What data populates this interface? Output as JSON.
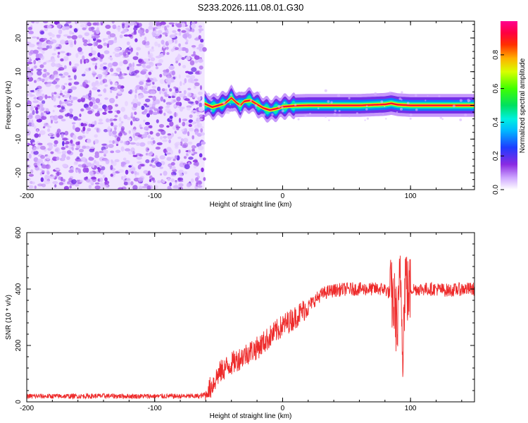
{
  "title": "S233.2026.111.08.01.G30",
  "chart_data": [
    {
      "type": "heatmap",
      "title": "S233.2026.111.08.01.G30",
      "xlabel": "Height of straight line (km)",
      "ylabel": "Frequency (Hz)",
      "xlim": [
        -200,
        150
      ],
      "ylim": [
        -25,
        25
      ],
      "x_ticks": [
        -200,
        -100,
        0,
        100
      ],
      "y_ticks": [
        -20,
        -10,
        0,
        10,
        20
      ],
      "noise_region_x": [
        -200,
        -61
      ],
      "signal_region_x": [
        -61,
        150
      ],
      "signal_frequency_hz": 0,
      "signal_band_center_trace": {
        "x": [
          -61,
          -55,
          -50,
          -45,
          -40,
          -36,
          -33,
          -30,
          -25,
          -20,
          -15,
          -10,
          -5,
          0,
          10,
          20,
          40,
          60,
          80,
          85,
          90,
          100,
          120,
          150
        ],
        "y": [
          0.5,
          -0.5,
          0.0,
          0.6,
          2.2,
          0.8,
          0.0,
          1.2,
          1.5,
          0.3,
          -0.8,
          -1.4,
          -1.0,
          -0.4,
          -0.1,
          0.0,
          0.0,
          0.0,
          0.3,
          0.6,
          0.2,
          0.0,
          0.0,
          0.0
        ]
      },
      "colorbar": {
        "label": "Normalized spectral amplitude",
        "range": [
          0.0,
          1.0
        ],
        "ticks": [
          0.0,
          0.2,
          0.4,
          0.6,
          0.8
        ]
      }
    },
    {
      "type": "line",
      "xlabel": "Height of straight line (km)",
      "ylabel": "SNR (10 * v/v)",
      "xlim": [
        -200,
        150
      ],
      "ylim": [
        0,
        600
      ],
      "x_ticks": [
        -200,
        -100,
        0,
        100
      ],
      "y_ticks": [
        0,
        200,
        400,
        600
      ],
      "color": "#ee2a2a",
      "series": [
        {
          "name": "SNR",
          "x": [
            -200,
            -180,
            -160,
            -140,
            -120,
            -100,
            -80,
            -65,
            -60,
            -55,
            -50,
            -45,
            -40,
            -35,
            -30,
            -25,
            -20,
            -15,
            -10,
            -5,
            0,
            5,
            10,
            15,
            20,
            25,
            30,
            35,
            40,
            50,
            60,
            70,
            80,
            85,
            88,
            90,
            92,
            94,
            96,
            98,
            100,
            110,
            120,
            130,
            140,
            150
          ],
          "values": [
            20,
            20,
            20,
            21,
            20,
            20,
            20,
            20,
            25,
            60,
            100,
            120,
            135,
            150,
            165,
            180,
            190,
            210,
            230,
            250,
            270,
            285,
            300,
            320,
            340,
            360,
            380,
            390,
            395,
            400,
            400,
            400,
            400,
            380,
            330,
            250,
            480,
            200,
            460,
            380,
            400,
            400,
            400,
            395,
            400,
            400
          ]
        }
      ]
    }
  ]
}
